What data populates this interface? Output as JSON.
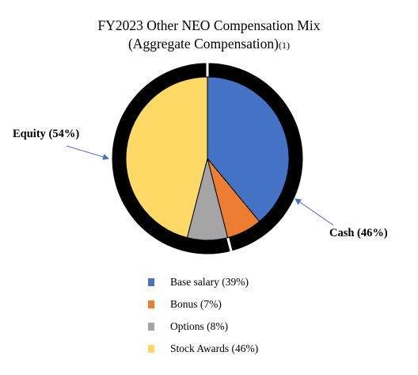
{
  "title_line1": "FY2023 Other NEO Compensation Mix",
  "title_line2": "(Aggregate Compensation)",
  "title_footnote": "(1)",
  "chart_data": {
    "type": "pie",
    "categories": [
      "Base salary (39%)",
      "Bonus (7%)",
      "Options (8%)",
      "Stock Awards (46%)"
    ],
    "values": [
      39,
      7,
      8,
      46
    ],
    "colors": [
      "#4472c4",
      "#ed7d31",
      "#a5a5a5",
      "#ffd966"
    ],
    "outer_ring": {
      "categories": [
        "Cash (46%)",
        "Equity (54%)"
      ],
      "values": [
        46,
        54
      ],
      "color": "#000000"
    },
    "callouts": [
      "Equity (54%)",
      "Cash (46%)"
    ],
    "legend_position": "bottom"
  },
  "legend": [
    {
      "label": "Base salary (39%)",
      "color": "#4472c4"
    },
    {
      "label": "Bonus (7%)",
      "color": "#ed7d31"
    },
    {
      "label": "Options (8%)",
      "color": "#a5a5a5"
    },
    {
      "label": "Stock Awards (46%)",
      "color": "#ffd966"
    }
  ],
  "callouts": {
    "equity": "Equity (54%)",
    "cash": "Cash (46%)"
  }
}
